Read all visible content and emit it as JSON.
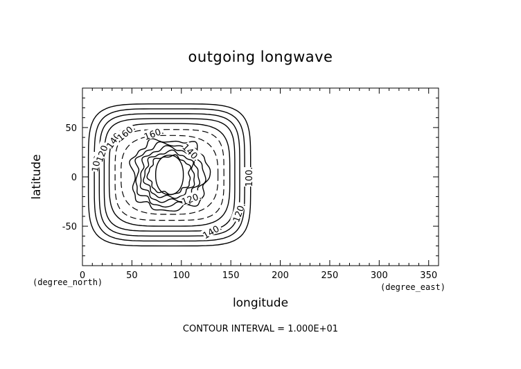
{
  "chart_data": {
    "type": "contour",
    "title": "outgoing longwave",
    "xlabel": "longitude",
    "ylabel": "latitude",
    "x_units": "(degree_east)",
    "y_units": "(degree_north)",
    "xlim": [
      0,
      360
    ],
    "ylim": [
      -90,
      90
    ],
    "x_ticks": [
      0,
      50,
      100,
      150,
      200,
      250,
      300,
      350
    ],
    "y_ticks": [
      -50,
      0,
      50
    ],
    "contour_interval_text": "CONTOUR INTERVAL = 1.000E+01",
    "contour_interval": 10,
    "center": {
      "lon": 88,
      "lat": 2
    },
    "contours": [
      {
        "value": 100,
        "half_width_lon": 82,
        "half_height_lat": 72,
        "shape": 5,
        "label": "100."
      },
      {
        "value": 110,
        "half_width_lon": 76,
        "half_height_lat": 67,
        "shape": 5
      },
      {
        "value": 120,
        "half_width_lon": 71,
        "half_height_lat": 62,
        "shape": 5,
        "label": "120."
      },
      {
        "value": 130,
        "half_width_lon": 66,
        "half_height_lat": 57,
        "shape": 5
      },
      {
        "value": 140,
        "half_width_lon": 61,
        "half_height_lat": 52,
        "shape": 4,
        "label": "140."
      },
      {
        "value": 150,
        "half_width_lon": 55,
        "half_height_lat": 46,
        "shape": 4,
        "dashed": true
      },
      {
        "value": 160,
        "half_width_lon": 49,
        "half_height_lat": 40,
        "shape": 3,
        "dashed": true,
        "label": "160."
      },
      {
        "value": 150,
        "half_width_lon": 38,
        "half_height_lat": 35,
        "shape": 2.6,
        "irregular": true
      },
      {
        "value": 140,
        "half_width_lon": 34,
        "half_height_lat": 31,
        "shape": 2.4,
        "irregular": true,
        "label": "140."
      },
      {
        "value": 130,
        "half_width_lon": 29,
        "half_height_lat": 27,
        "shape": 2.3,
        "irregular": true
      },
      {
        "value": 120,
        "half_width_lon": 25,
        "half_height_lat": 23,
        "shape": 2.2,
        "irregular": true,
        "label": "120."
      },
      {
        "value": 110,
        "half_width_lon": 21,
        "half_height_lat": 19,
        "shape": 2.2,
        "irregular": true
      },
      {
        "value": 100,
        "half_width_lon": 14,
        "half_height_lat": 20,
        "shape": 2.2
      }
    ],
    "contour_labels": [
      {
        "text": "100.",
        "lon": 14,
        "lat": 15,
        "angle": -80
      },
      {
        "text": "120.",
        "lon": 20,
        "lat": 25,
        "angle": -70
      },
      {
        "text": "140.",
        "lon": 32,
        "lat": 38,
        "angle": -55
      },
      {
        "text": "160.",
        "lon": 44,
        "lat": 45,
        "angle": -40
      },
      {
        "text": "160.",
        "lon": 72,
        "lat": 44,
        "angle": -20
      },
      {
        "text": "140.",
        "lon": 110,
        "lat": 25,
        "angle": 45
      },
      {
        "text": "120.",
        "lon": 110,
        "lat": -22,
        "angle": -20
      },
      {
        "text": "140.",
        "lon": 131,
        "lat": -55,
        "angle": -30
      },
      {
        "text": "120.",
        "lon": 158,
        "lat": -36,
        "angle": -70
      },
      {
        "text": "100.",
        "lon": 168,
        "lat": 0,
        "angle": -90
      }
    ]
  }
}
